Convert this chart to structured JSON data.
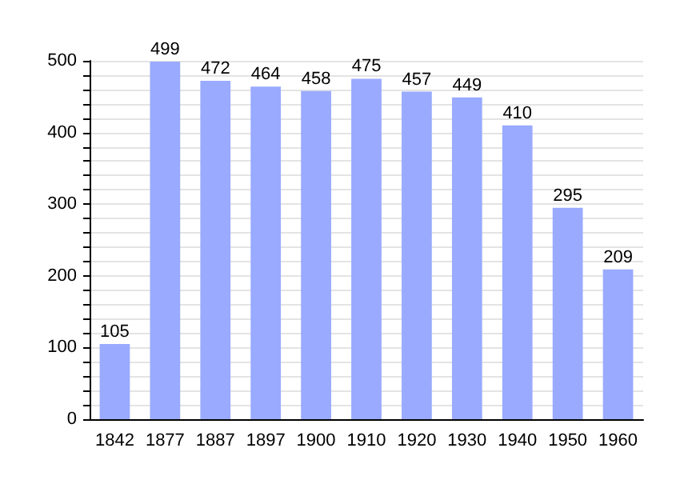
{
  "chart_data": {
    "type": "bar",
    "categories": [
      "1842",
      "1877",
      "1887",
      "1897",
      "1900",
      "1910",
      "1920",
      "1930",
      "1940",
      "1950",
      "1960"
    ],
    "values": [
      105,
      499,
      472,
      464,
      458,
      475,
      457,
      449,
      410,
      295,
      209
    ],
    "color": "#99aaff",
    "data_labels": true,
    "grid": "y",
    "ylim": [
      0,
      500
    ],
    "yticks": [
      0,
      {
        "value": 20,
        "label": null
      },
      {
        "value": 40,
        "label": null
      },
      {
        "value": 60,
        "label": null
      },
      {
        "value": 80,
        "label": null
      },
      100,
      {
        "value": 120,
        "label": null
      },
      {
        "value": 140,
        "label": null
      },
      {
        "value": 160,
        "label": null
      },
      {
        "value": 180,
        "label": null
      },
      200,
      {
        "value": 220,
        "label": null
      },
      {
        "value": 240,
        "label": null
      },
      {
        "value": 260,
        "label": null
      },
      {
        "value": 280,
        "label": null
      },
      300,
      {
        "value": 320,
        "label": null
      },
      {
        "value": 340,
        "label": null
      },
      {
        "value": 360,
        "label": null
      },
      {
        "value": 380,
        "label": null
      },
      400,
      {
        "value": 420,
        "label": null
      },
      {
        "value": 440,
        "label": null
      },
      {
        "value": 460,
        "label": null
      },
      {
        "value": 480,
        "label": null
      },
      500
    ]
  }
}
